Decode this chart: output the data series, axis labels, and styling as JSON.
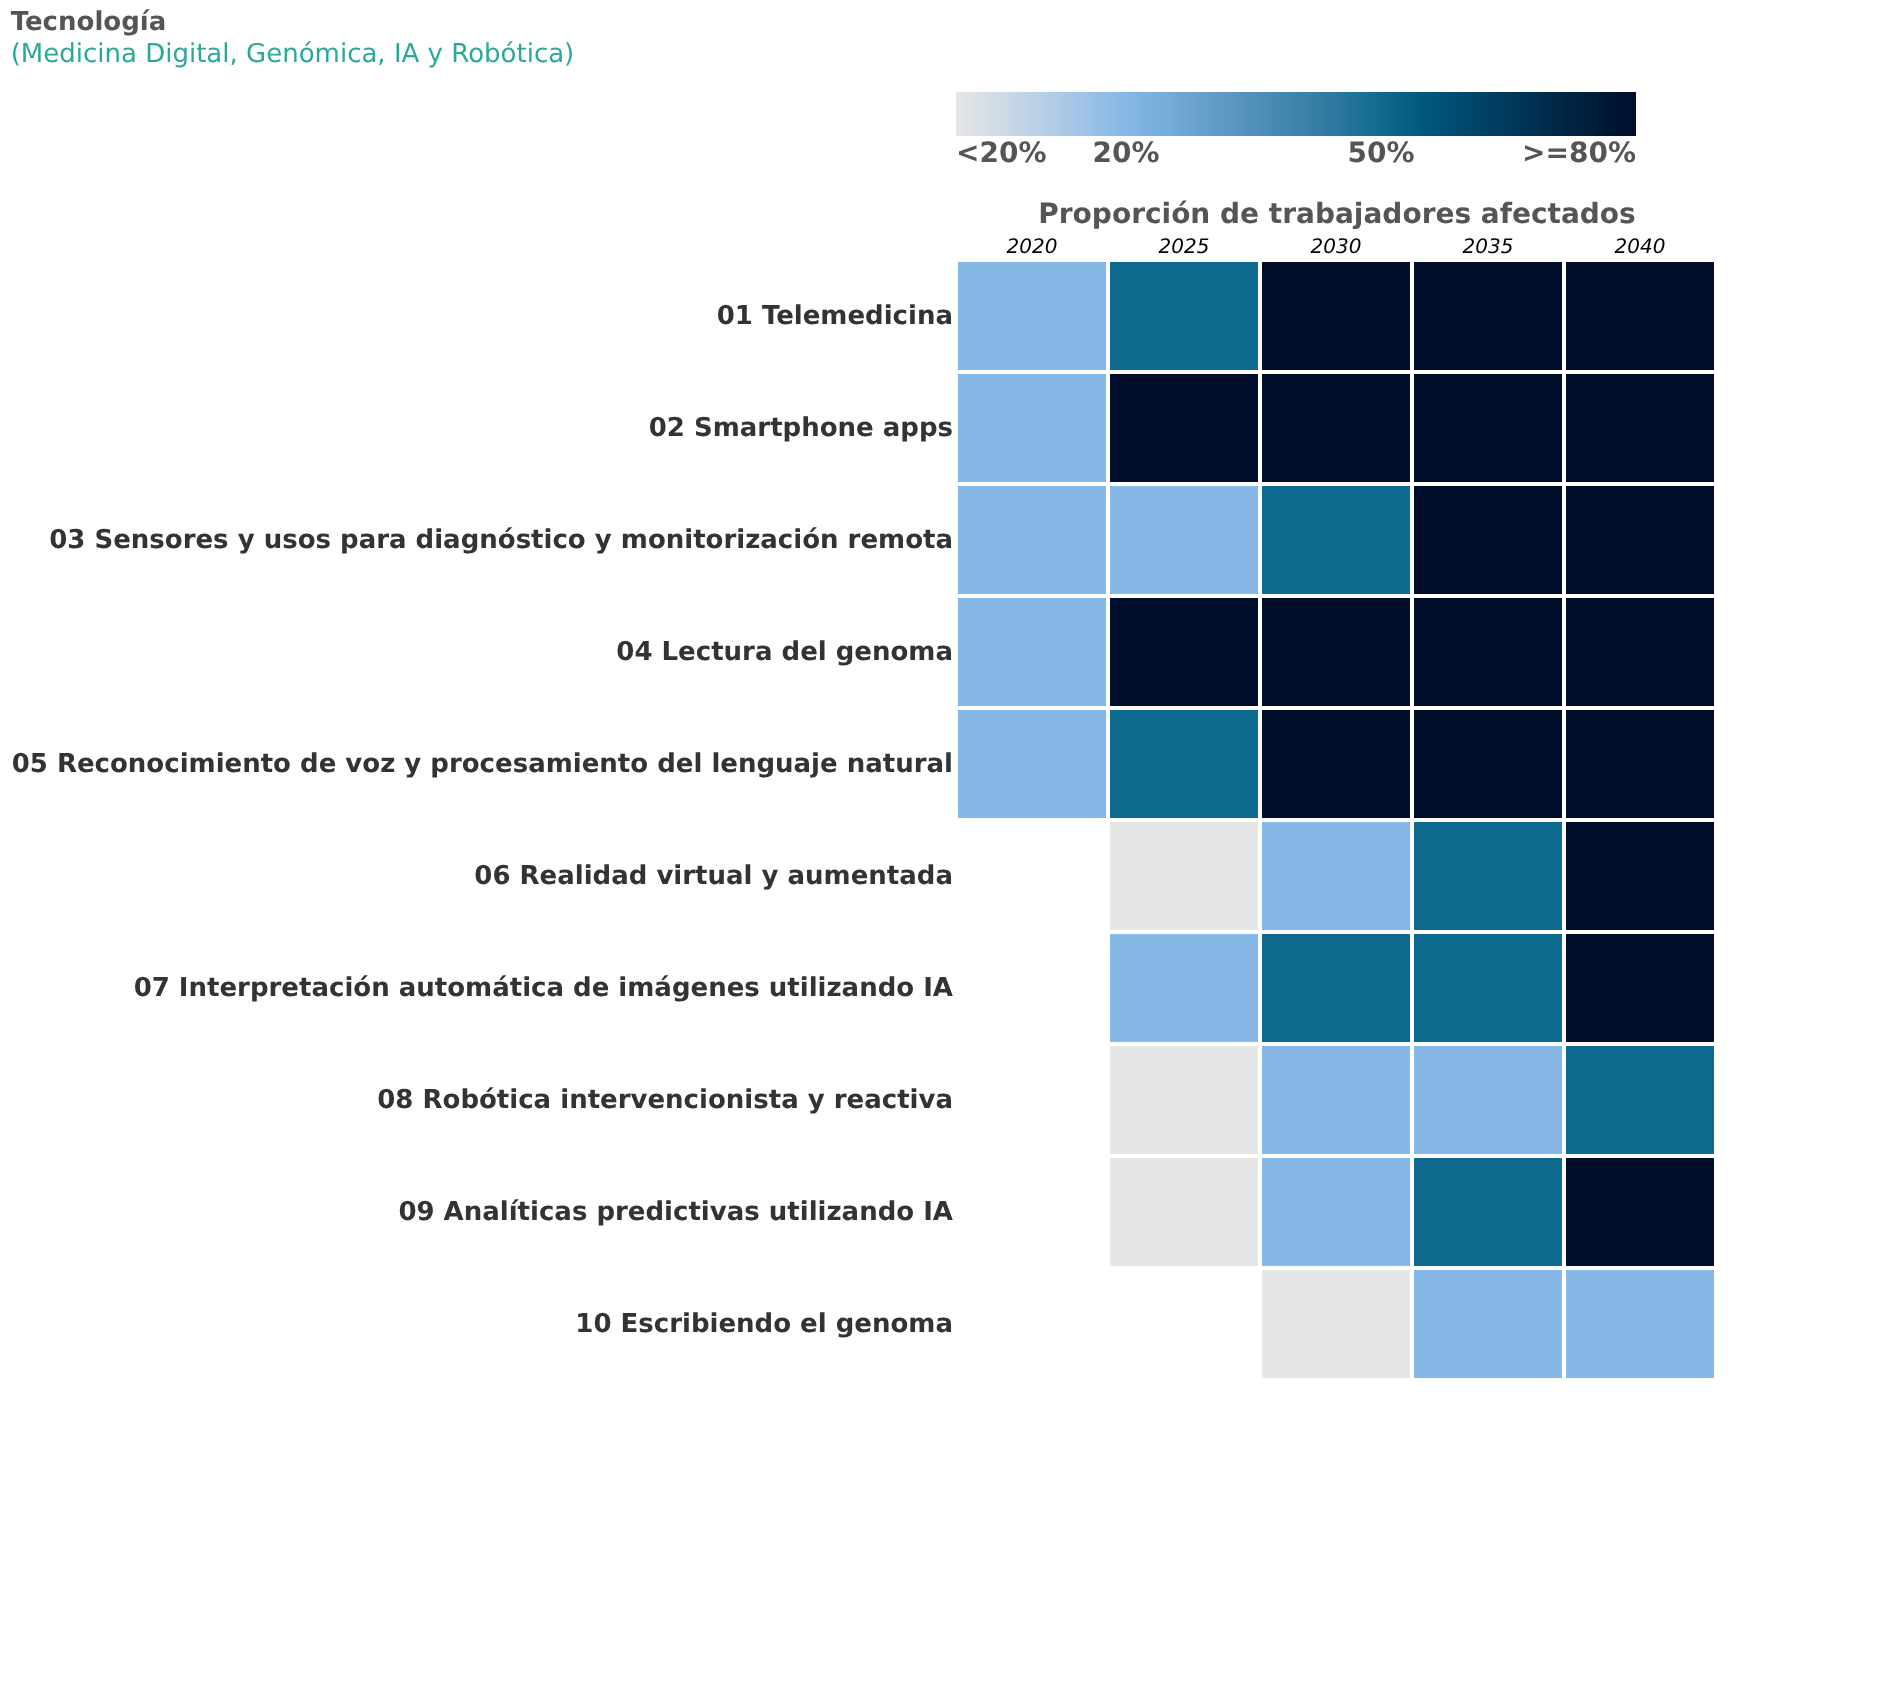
{
  "chart_data": {
    "type": "heatmap",
    "title": "Tecnología",
    "subtitle": "(Medicina Digital, Genómica, IA y Robótica)",
    "xlabel": "Proporción de trabajadores afectados",
    "categories": [
      "2020",
      "2025",
      "2030",
      "2035",
      "2040"
    ],
    "y_categories": [
      "01 Telemedicina",
      "02 Smartphone apps",
      "03 Sensores y usos para diagnóstico y monitorización remota",
      "04 Lectura del genoma",
      "05 Reconocimiento de voz y procesamiento del lenguaje natural",
      "06 Realidad virtual y aumentada",
      "07 Interpretación automática de imágenes utilizando IA",
      "08 Robótica intervencionista y reactiva",
      "09 Analíticas predictivas utilizando IA",
      "10 Escribiendo el genoma"
    ],
    "cells": [
      [
        20,
        50,
        80,
        80,
        80
      ],
      [
        20,
        80,
        80,
        80,
        80
      ],
      [
        20,
        20,
        50,
        80,
        80
      ],
      [
        20,
        80,
        80,
        80,
        80
      ],
      [
        20,
        50,
        80,
        80,
        80
      ],
      [
        null,
        0,
        20,
        50,
        80
      ],
      [
        null,
        20,
        50,
        50,
        80
      ],
      [
        null,
        0,
        20,
        20,
        50
      ],
      [
        null,
        0,
        20,
        50,
        80
      ],
      [
        null,
        null,
        0,
        20,
        20
      ]
    ],
    "clim": [
      0,
      80
    ],
    "cticks": [
      {
        "value": 0,
        "label": "<20%"
      },
      {
        "value": 20,
        "label": "20%"
      },
      {
        "value": 50,
        "label": "50%"
      },
      {
        "value": 80,
        "label": ">=80%"
      }
    ],
    "colors": [
      "#e6e6e6",
      "#85b8e6",
      "#0f6a8f",
      "#000000"
    ]
  }
}
